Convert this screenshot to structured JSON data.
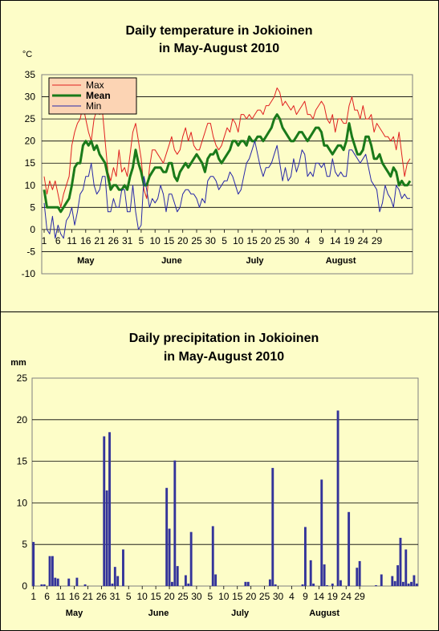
{
  "chart_data": [
    {
      "type": "line",
      "title_line1": "Daily temperature in Jokioinen",
      "title_line2": "in May-August 2010",
      "ylabel": "°C",
      "ylim": [
        -10,
        35
      ],
      "yticks": [
        35,
        30,
        25,
        20,
        15,
        10,
        5,
        0,
        -5,
        -10
      ],
      "xticks": [
        "1",
        "6",
        "11",
        "16",
        "21",
        "26",
        "31",
        "5",
        "10",
        "15",
        "20",
        "25",
        "30",
        "5",
        "10",
        "15",
        "20",
        "25",
        "30",
        "4",
        "9",
        "14",
        "19",
        "24",
        "29"
      ],
      "months": [
        "May",
        "June",
        "July",
        "August"
      ],
      "grid": true,
      "legend_position": "top-left",
      "series": [
        {
          "name": "Max",
          "color": "#e02020",
          "values": [
            12,
            8,
            11,
            9,
            11,
            8,
            5,
            8,
            10,
            12,
            19,
            22,
            24,
            25,
            28,
            25,
            22,
            20,
            25,
            27,
            26,
            27,
            20,
            13,
            11,
            14,
            12,
            18,
            13,
            14,
            12,
            17,
            22,
            24,
            20,
            16,
            9,
            7,
            14,
            18,
            18,
            17,
            16,
            15,
            17,
            19,
            21,
            18,
            17,
            18,
            21,
            23,
            20,
            22,
            19,
            18,
            18,
            20,
            22,
            24,
            24,
            21,
            19,
            18,
            19,
            21,
            23,
            22,
            25,
            24,
            22,
            26,
            26,
            25,
            26,
            25,
            26,
            27,
            27,
            26,
            28,
            28,
            29,
            30,
            32,
            31,
            28,
            29,
            28,
            27,
            28,
            26,
            27,
            28,
            29,
            26,
            26,
            25,
            27,
            28,
            29,
            28,
            25,
            24,
            26,
            22,
            25,
            25,
            24,
            24,
            28,
            30,
            27,
            27,
            25,
            28,
            25,
            25,
            26,
            22,
            24,
            23,
            22,
            21,
            21,
            20,
            21,
            18,
            22,
            17,
            12,
            15,
            16
          ]
        },
        {
          "name": "Mean",
          "color": "#1a7a1a",
          "values": [
            9,
            5,
            5,
            5,
            5,
            5,
            4,
            5,
            6,
            7,
            10,
            14,
            15,
            15,
            19,
            20,
            19,
            20,
            18,
            19,
            17,
            16,
            15,
            12,
            9,
            10,
            10,
            9,
            9,
            10,
            9,
            12,
            14,
            18,
            15,
            13,
            10,
            10,
            12,
            13,
            14,
            14,
            14,
            13,
            13,
            15,
            15,
            12,
            11,
            13,
            14,
            15,
            14,
            15,
            16,
            17,
            16,
            15,
            13,
            16,
            17,
            17,
            18,
            16,
            15,
            16,
            17,
            18,
            20,
            20,
            19,
            20,
            20,
            19,
            21,
            20,
            20,
            21,
            21,
            20,
            21,
            22,
            23,
            25,
            26,
            25,
            23,
            22,
            21,
            20,
            20,
            21,
            22,
            22,
            21,
            20,
            21,
            22,
            23,
            23,
            22,
            19,
            19,
            18,
            17,
            18,
            19,
            19,
            18,
            20,
            24,
            21,
            19,
            17,
            17,
            18,
            21,
            21,
            19,
            16,
            16,
            17,
            15,
            14,
            13,
            12,
            14,
            13,
            10,
            11,
            10,
            10,
            11
          ]
        },
        {
          "name": "Min",
          "color": "#2828a8",
          "values": [
            6,
            0,
            -1,
            3,
            -2,
            1,
            -1,
            -2,
            2,
            3,
            5,
            1,
            4,
            8,
            9,
            12,
            12,
            15,
            10,
            8,
            9,
            12,
            12,
            4,
            4,
            7,
            5,
            5,
            9,
            9,
            4,
            4,
            10,
            4,
            0,
            1,
            12,
            9,
            5,
            7,
            6,
            7,
            10,
            8,
            4,
            8,
            8,
            6,
            4,
            5,
            8,
            9,
            9,
            8,
            8,
            7,
            5,
            7,
            6,
            11,
            12,
            12,
            11,
            9,
            10,
            11,
            11,
            13,
            12,
            10,
            8,
            9,
            12,
            15,
            16,
            18,
            20,
            17,
            14,
            12,
            14,
            14,
            15,
            17,
            19,
            15,
            11,
            14,
            11,
            12,
            16,
            13,
            15,
            18,
            17,
            12,
            13,
            12,
            15,
            15,
            14,
            15,
            12,
            12,
            16,
            13,
            12,
            13,
            12,
            12,
            18,
            18,
            17,
            16,
            15,
            16,
            17,
            14,
            11,
            10,
            9,
            4,
            6,
            10,
            8,
            7,
            5,
            10,
            9,
            7,
            8,
            7,
            7
          ]
        }
      ]
    },
    {
      "type": "bar",
      "title_line1": "Daily precipitation in Jokioinen",
      "title_line2": "in May-August 2010",
      "ylabel": "mm",
      "ylim": [
        0,
        25
      ],
      "yticks": [
        25,
        20,
        15,
        10,
        5,
        0
      ],
      "xticks": [
        "1",
        "6",
        "11",
        "16",
        "21",
        "26",
        "31",
        "5",
        "10",
        "15",
        "20",
        "25",
        "30",
        "5",
        "10",
        "15",
        "20",
        "25",
        "30",
        "4",
        "9",
        "14",
        "19",
        "24",
        "29"
      ],
      "months": [
        "May",
        "June",
        "July",
        "August"
      ],
      "grid": true,
      "color": "#33339a",
      "values": [
        5.3,
        0,
        0,
        0.2,
        0.2,
        0,
        3.6,
        3.6,
        1.0,
        0.9,
        0,
        0,
        0,
        0.9,
        0,
        0,
        1.0,
        0,
        0,
        0.2,
        0,
        0,
        0,
        0,
        0,
        0,
        18.0,
        11.5,
        18.5,
        0.3,
        2.3,
        1.2,
        0,
        4.4,
        0,
        0,
        0,
        0,
        0,
        0,
        0,
        0,
        0,
        0,
        0,
        0,
        0,
        0,
        0,
        11.8,
        6.9,
        0.5,
        15.1,
        2.4,
        0,
        0,
        1.3,
        0.3,
        6.5,
        0,
        0,
        0,
        0,
        0,
        0,
        0,
        7.2,
        1.4,
        0,
        0,
        0,
        0,
        0,
        0,
        0,
        0,
        0,
        0,
        0.5,
        0.5,
        0,
        0,
        0,
        0,
        0,
        0,
        0,
        0.8,
        14.2,
        0.2,
        0,
        0,
        0,
        0,
        0,
        0,
        0,
        0,
        0,
        0.2,
        7.1,
        0,
        3.1,
        0.3,
        0,
        0,
        12.8,
        2.6,
        0.1,
        0,
        0.3,
        0,
        21.1,
        0.7,
        0,
        0,
        8.9,
        0,
        0,
        2.2,
        3.0,
        0,
        0,
        0,
        0,
        0,
        0.1,
        0,
        1.4,
        0,
        0,
        0,
        1.2,
        0.6,
        2.5,
        5.8,
        0.5,
        4.4,
        0.3,
        0.5,
        1.3,
        0.3
      ]
    }
  ]
}
